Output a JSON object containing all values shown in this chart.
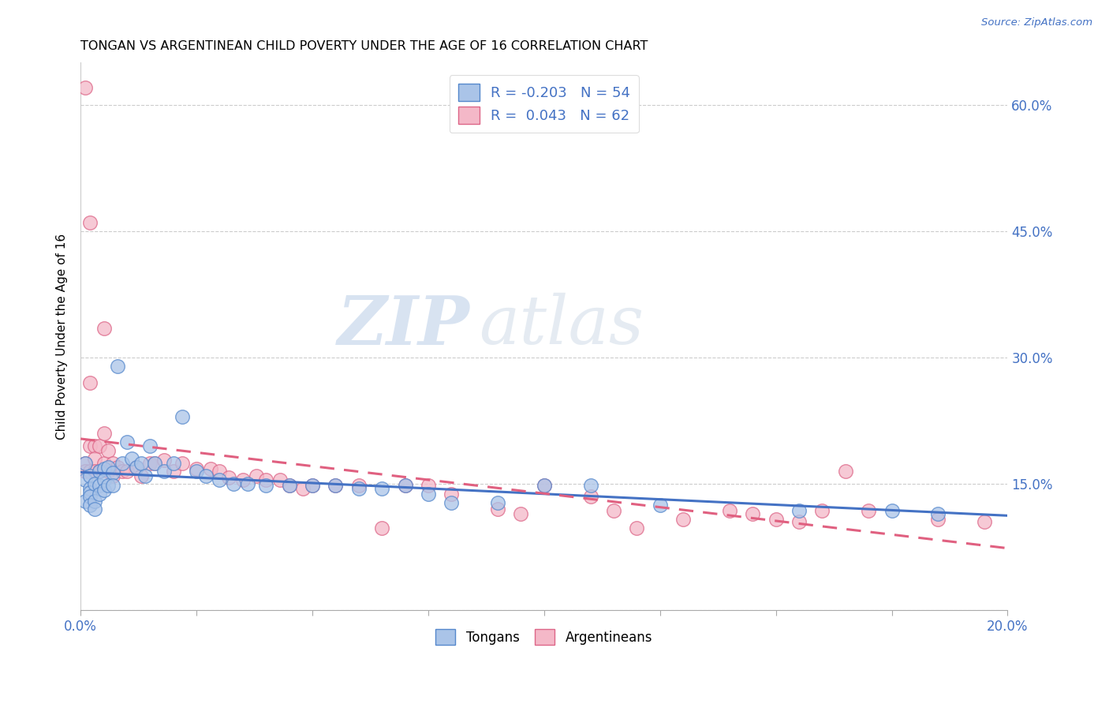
{
  "title": "TONGAN VS ARGENTINEAN CHILD POVERTY UNDER THE AGE OF 16 CORRELATION CHART",
  "source": "Source: ZipAtlas.com",
  "ylabel": "Child Poverty Under the Age of 16",
  "xlim": [
    0.0,
    0.2
  ],
  "ylim": [
    0.0,
    0.65
  ],
  "xticks": [
    0.0,
    0.025,
    0.05,
    0.075,
    0.1,
    0.125,
    0.15,
    0.175,
    0.2
  ],
  "yticks_right": [
    0.0,
    0.15,
    0.3,
    0.45,
    0.6
  ],
  "ytick_labels_right": [
    "",
    "15.0%",
    "30.0%",
    "45.0%",
    "60.0%"
  ],
  "legend_R_tongans": "-0.203",
  "legend_N_tongans": "54",
  "legend_R_argentineans": "0.043",
  "legend_N_argentineans": "62",
  "tongan_fill": "#aac4e8",
  "argentinean_fill": "#f4b8c8",
  "tongan_edge": "#5588cc",
  "argentinean_edge": "#dd6688",
  "tongan_line_color": "#4472c4",
  "argentinean_line_color": "#e06080",
  "background_color": "#ffffff",
  "watermark_zip": "ZIP",
  "watermark_atlas": "atlas",
  "tongans_x": [
    0.001,
    0.001,
    0.001,
    0.002,
    0.002,
    0.002,
    0.002,
    0.002,
    0.003,
    0.003,
    0.003,
    0.004,
    0.004,
    0.004,
    0.005,
    0.005,
    0.005,
    0.006,
    0.006,
    0.007,
    0.007,
    0.008,
    0.009,
    0.01,
    0.011,
    0.012,
    0.013,
    0.014,
    0.015,
    0.016,
    0.018,
    0.02,
    0.022,
    0.025,
    0.027,
    0.03,
    0.033,
    0.036,
    0.04,
    0.045,
    0.05,
    0.055,
    0.06,
    0.065,
    0.07,
    0.075,
    0.08,
    0.09,
    0.1,
    0.11,
    0.125,
    0.155,
    0.175,
    0.185
  ],
  "tongans_y": [
    0.175,
    0.155,
    0.13,
    0.16,
    0.145,
    0.14,
    0.135,
    0.125,
    0.15,
    0.13,
    0.12,
    0.165,
    0.148,
    0.138,
    0.168,
    0.155,
    0.143,
    0.17,
    0.148,
    0.163,
    0.148,
    0.29,
    0.175,
    0.2,
    0.18,
    0.17,
    0.175,
    0.16,
    0.195,
    0.175,
    0.165,
    0.175,
    0.23,
    0.165,
    0.16,
    0.155,
    0.15,
    0.15,
    0.148,
    0.148,
    0.148,
    0.148,
    0.145,
    0.145,
    0.148,
    0.138,
    0.128,
    0.128,
    0.148,
    0.148,
    0.125,
    0.118,
    0.118,
    0.115
  ],
  "argentineans_x": [
    0.001,
    0.001,
    0.001,
    0.002,
    0.002,
    0.002,
    0.002,
    0.003,
    0.003,
    0.003,
    0.004,
    0.004,
    0.005,
    0.005,
    0.005,
    0.006,
    0.006,
    0.007,
    0.007,
    0.008,
    0.009,
    0.01,
    0.012,
    0.013,
    0.015,
    0.016,
    0.018,
    0.02,
    0.022,
    0.025,
    0.028,
    0.03,
    0.032,
    0.035,
    0.038,
    0.04,
    0.043,
    0.045,
    0.048,
    0.05,
    0.055,
    0.06,
    0.065,
    0.07,
    0.075,
    0.08,
    0.09,
    0.095,
    0.1,
    0.11,
    0.115,
    0.12,
    0.13,
    0.14,
    0.145,
    0.15,
    0.155,
    0.16,
    0.165,
    0.17,
    0.185,
    0.195
  ],
  "argentineans_y": [
    0.62,
    0.175,
    0.165,
    0.46,
    0.27,
    0.195,
    0.165,
    0.195,
    0.18,
    0.165,
    0.195,
    0.165,
    0.335,
    0.21,
    0.175,
    0.19,
    0.165,
    0.175,
    0.16,
    0.17,
    0.165,
    0.165,
    0.17,
    0.16,
    0.175,
    0.175,
    0.178,
    0.165,
    0.175,
    0.168,
    0.168,
    0.165,
    0.158,
    0.155,
    0.16,
    0.155,
    0.155,
    0.148,
    0.145,
    0.148,
    0.148,
    0.148,
    0.098,
    0.148,
    0.148,
    0.138,
    0.12,
    0.115,
    0.148,
    0.135,
    0.118,
    0.098,
    0.108,
    0.118,
    0.115,
    0.108,
    0.105,
    0.118,
    0.165,
    0.118,
    0.108,
    0.105
  ]
}
